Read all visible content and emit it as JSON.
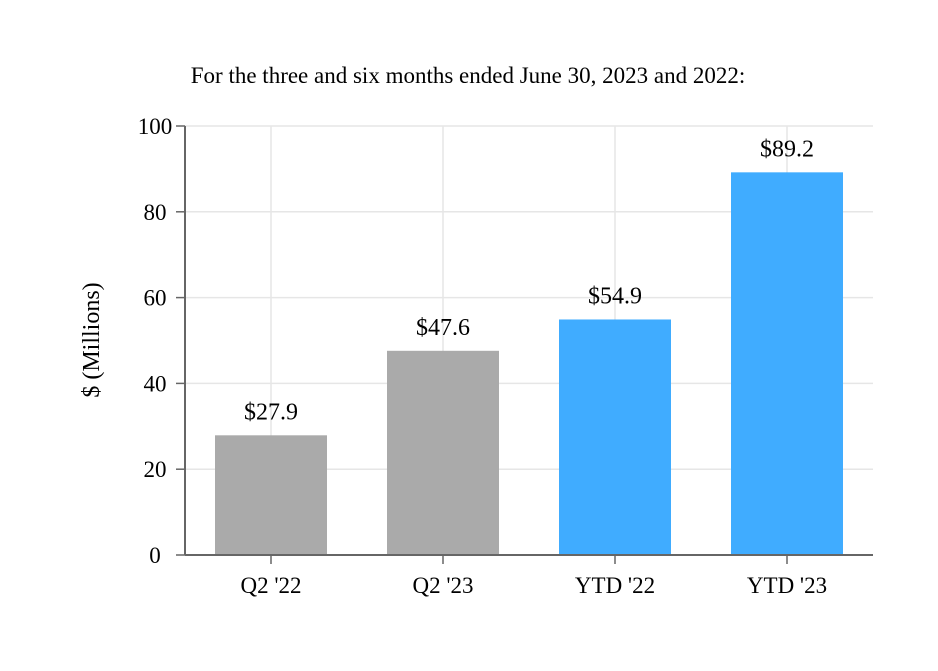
{
  "chart_data": {
    "type": "bar",
    "title": "For the three and six months ended June 30, 2023 and 2022:",
    "xlabel": "",
    "ylabel": "$ (Millions)",
    "categories": [
      "Q2 '22",
      "Q2 '23",
      "YTD '22",
      "YTD '23"
    ],
    "values": [
      27.9,
      47.6,
      54.9,
      89.2
    ],
    "data_labels": [
      "$27.9",
      "$47.6",
      "$54.9",
      "$89.2"
    ],
    "bar_colors": [
      "#aaaaaa",
      "#aaaaaa",
      "#40acff",
      "#40acff"
    ],
    "ylim": [
      0,
      100
    ],
    "yticks": [
      0,
      20,
      40,
      60,
      80,
      100
    ],
    "ytick_labels": [
      "0",
      "20",
      "40",
      "60",
      "80",
      "100"
    ],
    "grid": true,
    "grid_color": "#e6e6e6",
    "axis_color": "#666666"
  }
}
